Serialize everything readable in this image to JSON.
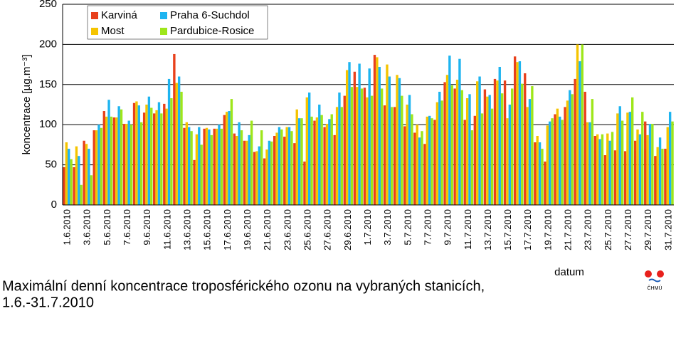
{
  "chart_data": {
    "type": "bar",
    "title": "Maximální denní koncentrace troposférického ozonu na vybraných stanicích,",
    "subtitle": "1.6.-31.7.2010",
    "ylabel": "koncentrace [µg.m⁻³]",
    "xlabel": "datum",
    "logo_text": "ČHMÚ",
    "categories": [
      "1.6.2010",
      null,
      "3.6.2010",
      null,
      "5.6.2010",
      null,
      "7.6.2010",
      null,
      "9.6.2010",
      null,
      "11.6.2010",
      null,
      "13.6.2010",
      null,
      "15.6.2010",
      null,
      "17.6.2010",
      null,
      "19.6.2010",
      null,
      "21.6.2010",
      null,
      "23.6.2010",
      null,
      "25.6.2010",
      null,
      "27.6.2010",
      null,
      "29.6.2010",
      null,
      "1.7.2010",
      null,
      "3.7.2010",
      null,
      "5.7.2010",
      null,
      "7.7.2010",
      null,
      "9.7.2010",
      null,
      "11.7.2010",
      null,
      "13.7.2010",
      null,
      "15.7.2010",
      null,
      "17.7.2010",
      null,
      "19.7.2010",
      null,
      "21.7.2010",
      null,
      "23.7.2010",
      null,
      "25.7.2010",
      null,
      "27.7.2010",
      null,
      "29.7.2010",
      null,
      "31.7.2010"
    ],
    "series": [
      {
        "name": "Karviná",
        "color": "#e8401c",
        "values": [
          47,
          47,
          80,
          93,
          117,
          109,
          101,
          127,
          115,
          114,
          126,
          188,
          96,
          56,
          95,
          95,
          112,
          89,
          80,
          66,
          58,
          86,
          85,
          77,
          54,
          105,
          97,
          87,
          136,
          166,
          146,
          187,
          124,
          122,
          98,
          90,
          76,
          106,
          153,
          145,
          106,
          111,
          144,
          157,
          155,
          185,
          164,
          78,
          54,
          113,
          122,
          157,
          141,
          86,
          62,
          68,
          67,
          80,
          104,
          61,
          70
        ]
      },
      {
        "name": "Praha 6-Suchdol",
        "color": "#1eb4f0",
        "values": [
          70,
          61,
          70,
          100,
          131,
          123,
          105,
          124,
          135,
          128,
          157,
          160,
          97,
          97,
          94,
          100,
          117,
          103,
          87,
          73,
          80,
          97,
          97,
          108,
          140,
          125,
          107,
          140,
          178,
          176,
          170,
          172,
          160,
          158,
          137,
          84,
          111,
          141,
          186,
          182,
          138,
          160,
          137,
          172,
          125,
          179,
          132,
          78,
          104,
          110,
          143,
          179,
          103,
          82,
          80,
          123,
          116,
          88,
          101,
          84,
          116
        ]
      },
      {
        "name": "Most",
        "color": "#f5c400",
        "values": [
          78,
          73,
          76,
          93,
          110,
          109,
          101,
          129,
          125,
          118,
          120,
          152,
          103,
          88,
          96,
          95,
          116,
          86,
          80,
          67,
          69,
          90,
          97,
          119,
          134,
          109,
          101,
          122,
          168,
          147,
          134,
          184,
          175,
          162,
          125,
          100,
          110,
          128,
          162,
          156,
          133,
          154,
          135,
          155,
          108,
          178,
          122,
          86,
          99,
          120,
          130,
          200,
          103,
          88,
          89,
          114,
          115,
          94,
          87,
          72,
          97
        ]
      },
      {
        "name": "Pardubice-Rosice",
        "color": "#9ee61a",
        "values": [
          57,
          25,
          37,
          96,
          110,
          119,
          100,
          103,
          121,
          114,
          133,
          141,
          92,
          75,
          87,
          95,
          132,
          93,
          105,
          93,
          79,
          94,
          92,
          108,
          110,
          112,
          113,
          122,
          147,
          145,
          136,
          145,
          122,
          136,
          113,
          92,
          108,
          130,
          149,
          143,
          93,
          114,
          120,
          139,
          145,
          151,
          148,
          70,
          108,
          106,
          138,
          200,
          132,
          88,
          91,
          105,
          134,
          116,
          101,
          70,
          104
        ]
      }
    ],
    "ylim": [
      0,
      250
    ],
    "yticks": [
      0,
      50,
      100,
      150,
      200,
      250
    ],
    "grid": true
  }
}
